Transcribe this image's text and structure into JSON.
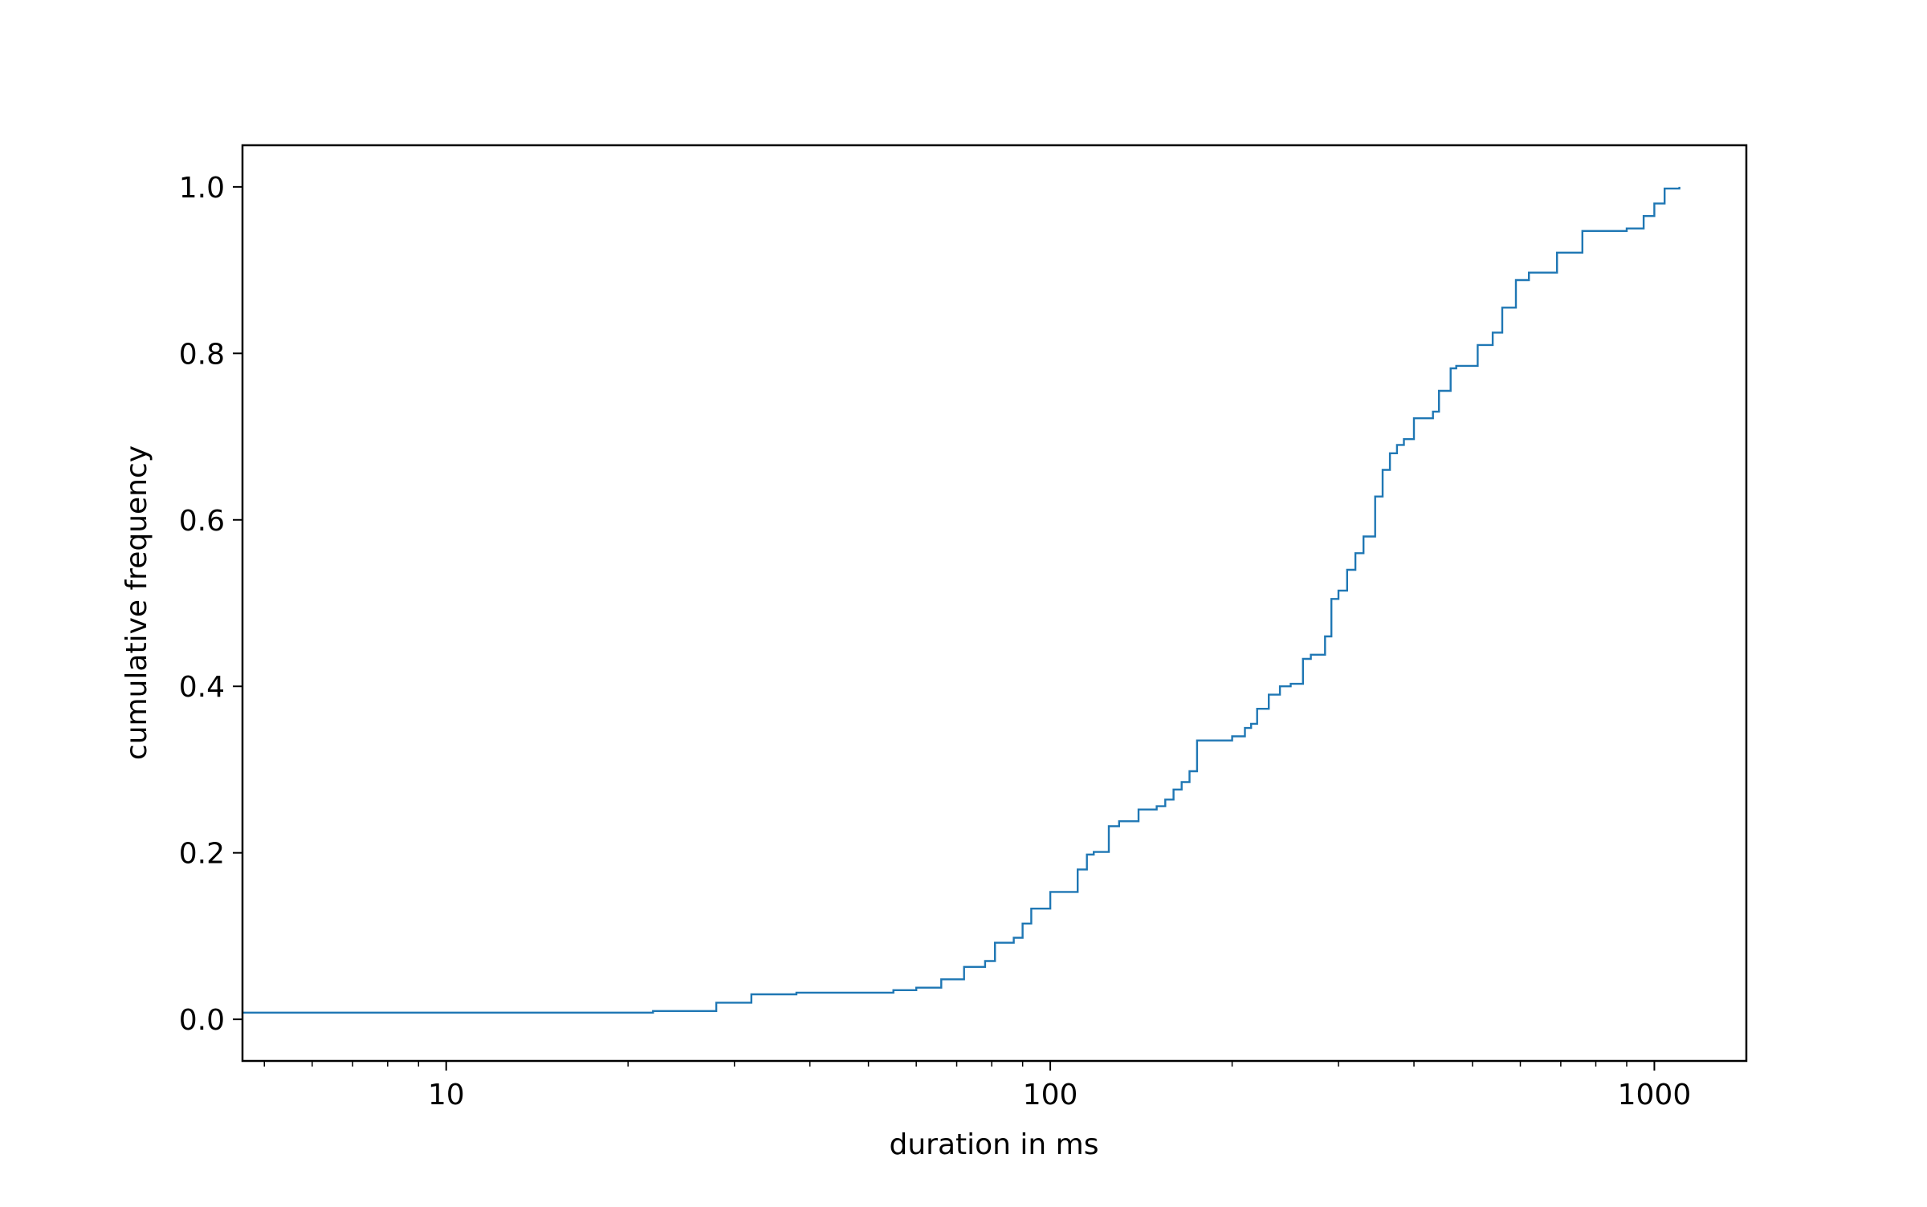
{
  "chart_data": {
    "type": "line",
    "title": "",
    "xlabel": "duration in ms",
    "ylabel": "cumulative frequency",
    "xscale": "log",
    "xlim": [
      4.6,
      1420
    ],
    "ylim": [
      -0.05,
      1.05
    ],
    "grid": false,
    "legend": "none",
    "x_ticks": [
      {
        "value": 10,
        "label": "10"
      },
      {
        "value": 100,
        "label": "100"
      },
      {
        "value": 1000,
        "label": "1000"
      }
    ],
    "y_ticks": [
      {
        "value": 0.0,
        "label": "0.0"
      },
      {
        "value": 0.2,
        "label": "0.2"
      },
      {
        "value": 0.4,
        "label": "0.4"
      },
      {
        "value": 0.6,
        "label": "0.6"
      },
      {
        "value": 0.8,
        "label": "0.8"
      },
      {
        "value": 1.0,
        "label": "1.0"
      }
    ],
    "series": [
      {
        "color": "#1f77b4",
        "step": "post",
        "x": [
          4.6,
          22,
          28,
          32,
          38,
          55,
          60,
          66,
          72,
          78,
          81,
          87,
          90,
          93,
          100,
          111,
          115,
          118,
          125,
          130,
          140,
          150,
          155,
          160,
          165,
          170,
          175,
          200,
          210,
          215,
          220,
          230,
          240,
          250,
          262,
          270,
          285,
          292,
          300,
          310,
          320,
          330,
          345,
          355,
          365,
          375,
          385,
          400,
          430,
          440,
          460,
          470,
          510,
          540,
          560,
          590,
          620,
          690,
          760,
          900,
          960,
          1000,
          1040,
          1100
        ],
        "y": [
          0.008,
          0.01,
          0.02,
          0.03,
          0.032,
          0.035,
          0.038,
          0.048,
          0.063,
          0.07,
          0.092,
          0.098,
          0.115,
          0.133,
          0.153,
          0.18,
          0.198,
          0.201,
          0.232,
          0.238,
          0.252,
          0.256,
          0.264,
          0.276,
          0.285,
          0.298,
          0.335,
          0.34,
          0.35,
          0.355,
          0.373,
          0.39,
          0.4,
          0.403,
          0.433,
          0.438,
          0.46,
          0.505,
          0.515,
          0.54,
          0.56,
          0.58,
          0.628,
          0.66,
          0.68,
          0.69,
          0.697,
          0.722,
          0.73,
          0.755,
          0.782,
          0.785,
          0.81,
          0.825,
          0.855,
          0.888,
          0.897,
          0.921,
          0.947,
          0.95,
          0.965,
          0.98,
          0.998,
          1.0
        ]
      }
    ]
  }
}
